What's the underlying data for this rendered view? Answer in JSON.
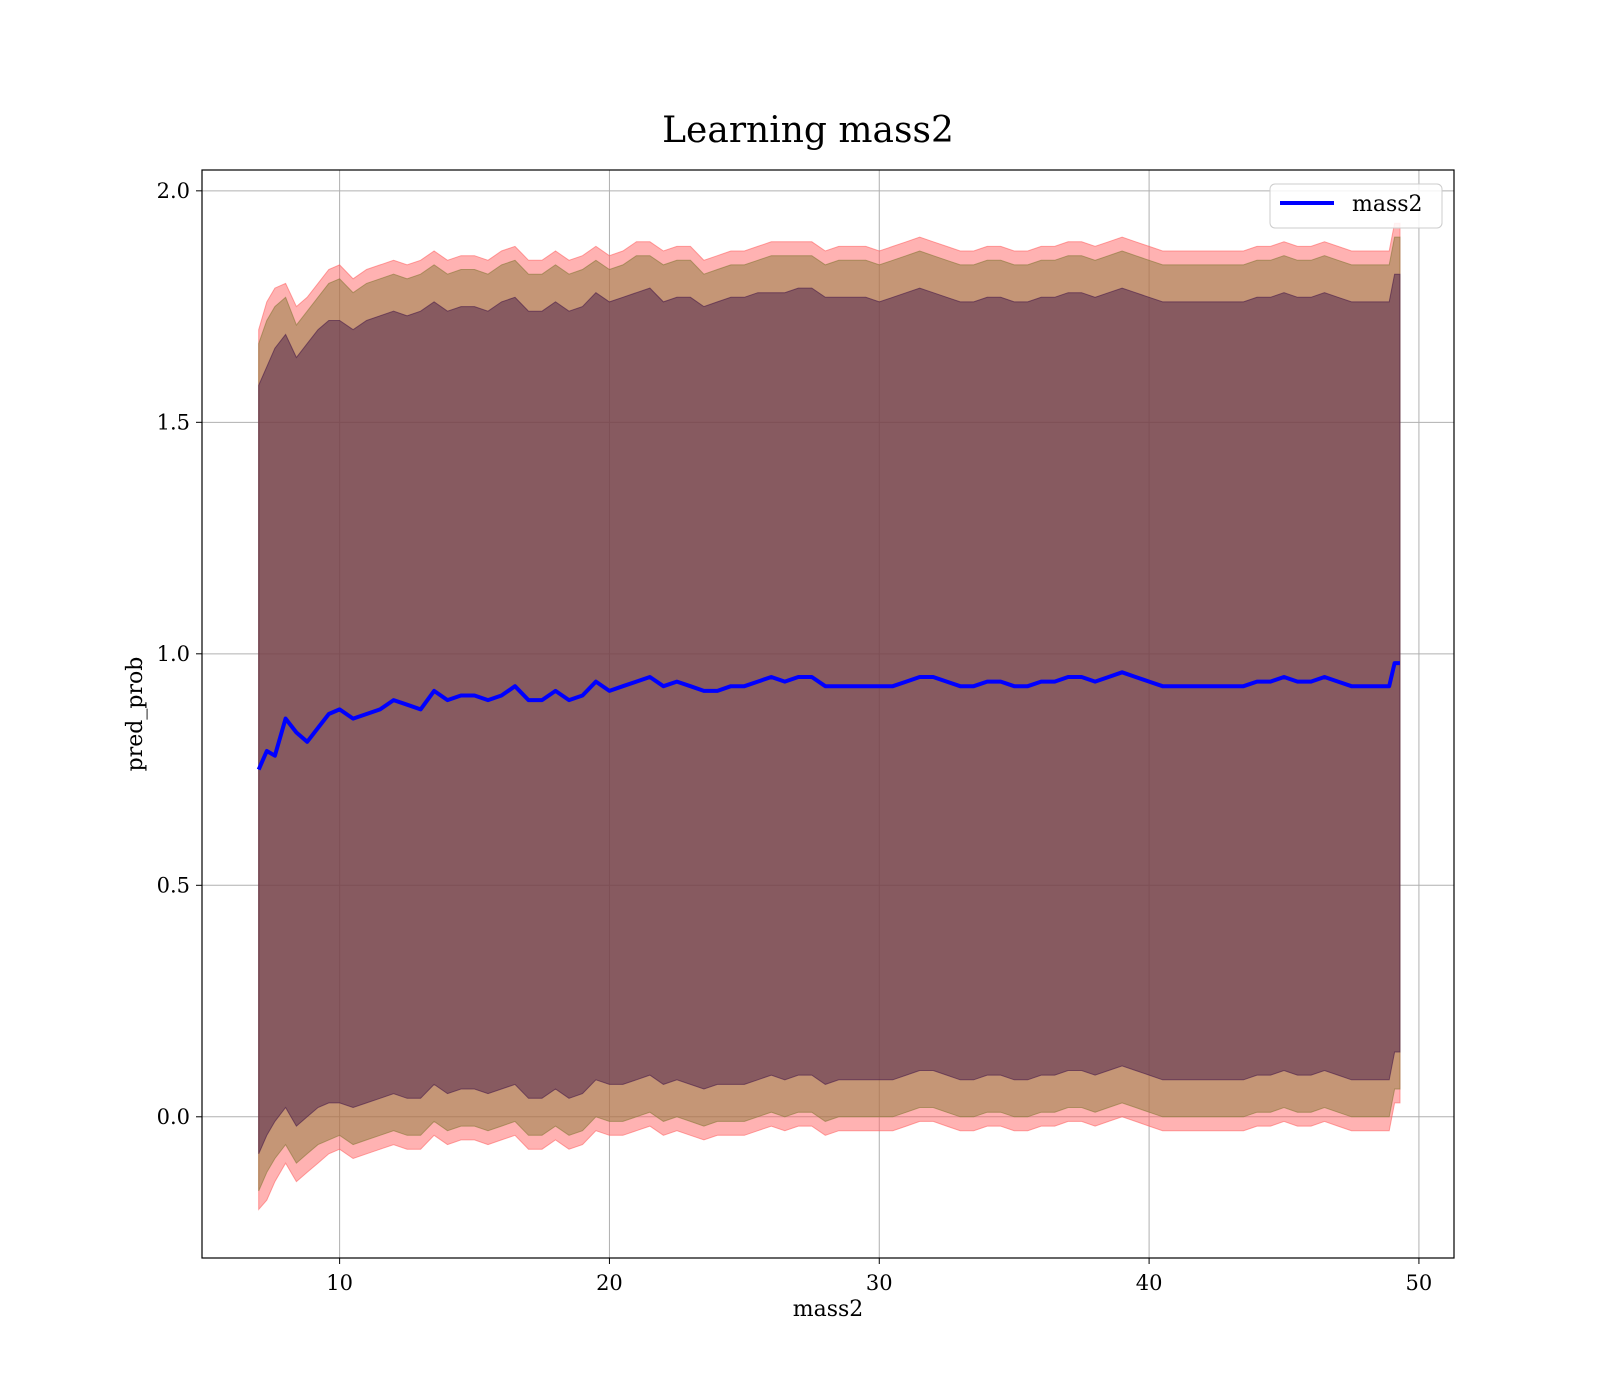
{
  "chart_data": {
    "type": "line",
    "title": "Learning mass2",
    "xlabel": "mass2",
    "ylabel": "pred_prob",
    "xlim": [
      4.9,
      51.3
    ],
    "ylim": [
      -0.305,
      2.045
    ],
    "xticks": [
      10,
      20,
      30,
      40,
      50
    ],
    "xtick_labels": [
      "10",
      "20",
      "30",
      "40",
      "50"
    ],
    "yticks": [
      0.0,
      0.5,
      1.0,
      1.5,
      2.0
    ],
    "ytick_labels": [
      "0.0",
      "0.5",
      "1.0",
      "1.5",
      "2.0"
    ],
    "grid": true,
    "legend": {
      "placement": "top-right",
      "entries": [
        "mass2"
      ]
    },
    "colors": {
      "line": "#0000ff",
      "band_outer": "#ff6666",
      "band_middle": "#8b7a3a",
      "band_inner": "#4a1d4a",
      "grid": "#b0b0b0"
    },
    "series": [
      {
        "name": "mass2",
        "x": [
          7.0,
          7.3,
          7.6,
          8.0,
          8.4,
          8.8,
          9.2,
          9.6,
          10.0,
          10.5,
          11.0,
          11.5,
          12.0,
          12.5,
          13.0,
          13.5,
          14.0,
          14.5,
          15.0,
          15.5,
          16.0,
          16.5,
          17.0,
          17.5,
          18.0,
          18.5,
          19.0,
          19.5,
          20.0,
          20.5,
          21.0,
          21.5,
          22.0,
          22.5,
          23.0,
          23.5,
          24.0,
          24.5,
          25.0,
          25.5,
          26.0,
          26.5,
          27.0,
          27.5,
          28.0,
          28.5,
          29.0,
          29.5,
          30.0,
          30.5,
          31.0,
          31.5,
          32.0,
          32.5,
          33.0,
          33.5,
          34.0,
          34.5,
          35.0,
          35.5,
          36.0,
          36.5,
          37.0,
          37.5,
          38.0,
          38.5,
          39.0,
          39.5,
          40.0,
          40.5,
          41.0,
          41.5,
          42.0,
          42.5,
          43.0,
          43.5,
          44.0,
          44.5,
          45.0,
          45.5,
          46.0,
          46.5,
          47.0,
          47.5,
          48.0,
          48.5,
          48.9,
          49.1,
          49.3
        ],
        "y": [
          0.75,
          0.79,
          0.78,
          0.86,
          0.83,
          0.81,
          0.84,
          0.87,
          0.88,
          0.86,
          0.87,
          0.88,
          0.9,
          0.89,
          0.88,
          0.92,
          0.9,
          0.91,
          0.91,
          0.9,
          0.91,
          0.93,
          0.9,
          0.9,
          0.92,
          0.9,
          0.91,
          0.94,
          0.92,
          0.93,
          0.94,
          0.95,
          0.93,
          0.94,
          0.93,
          0.92,
          0.92,
          0.93,
          0.93,
          0.94,
          0.95,
          0.94,
          0.95,
          0.95,
          0.93,
          0.93,
          0.93,
          0.93,
          0.93,
          0.93,
          0.94,
          0.95,
          0.95,
          0.94,
          0.93,
          0.93,
          0.94,
          0.94,
          0.93,
          0.93,
          0.94,
          0.94,
          0.95,
          0.95,
          0.94,
          0.95,
          0.96,
          0.95,
          0.94,
          0.93,
          0.93,
          0.93,
          0.93,
          0.93,
          0.93,
          0.93,
          0.94,
          0.94,
          0.95,
          0.94,
          0.94,
          0.95,
          0.94,
          0.93,
          0.93,
          0.93,
          0.93,
          0.98,
          0.98
        ]
      }
    ],
    "bands": [
      {
        "role": "outer",
        "x": [
          7.0,
          7.3,
          7.6,
          8.0,
          8.4,
          8.8,
          9.2,
          9.6,
          10.0,
          10.5,
          11.0,
          11.5,
          12.0,
          12.5,
          13.0,
          13.5,
          14.0,
          14.5,
          15.0,
          15.5,
          16.0,
          16.5,
          17.0,
          17.5,
          18.0,
          18.5,
          19.0,
          19.5,
          20.0,
          20.5,
          21.0,
          21.5,
          22.0,
          22.5,
          23.0,
          23.5,
          24.0,
          24.5,
          25.0,
          25.5,
          26.0,
          26.5,
          27.0,
          27.5,
          28.0,
          28.5,
          29.0,
          29.5,
          30.0,
          30.5,
          31.0,
          31.5,
          32.0,
          32.5,
          33.0,
          33.5,
          34.0,
          34.5,
          35.0,
          35.5,
          36.0,
          36.5,
          37.0,
          37.5,
          38.0,
          38.5,
          39.0,
          39.5,
          40.0,
          40.5,
          41.0,
          41.5,
          42.0,
          42.5,
          43.0,
          43.5,
          44.0,
          44.5,
          45.0,
          45.5,
          46.0,
          46.5,
          47.0,
          47.5,
          48.0,
          48.5,
          48.9,
          49.1,
          49.3
        ],
        "upper": [
          1.7,
          1.76,
          1.79,
          1.8,
          1.75,
          1.77,
          1.8,
          1.83,
          1.84,
          1.81,
          1.83,
          1.84,
          1.85,
          1.84,
          1.85,
          1.87,
          1.85,
          1.86,
          1.86,
          1.85,
          1.87,
          1.88,
          1.85,
          1.85,
          1.87,
          1.85,
          1.86,
          1.88,
          1.86,
          1.87,
          1.89,
          1.89,
          1.87,
          1.88,
          1.88,
          1.85,
          1.86,
          1.87,
          1.87,
          1.88,
          1.89,
          1.89,
          1.89,
          1.89,
          1.87,
          1.88,
          1.88,
          1.88,
          1.87,
          1.88,
          1.89,
          1.9,
          1.89,
          1.88,
          1.87,
          1.87,
          1.88,
          1.88,
          1.87,
          1.87,
          1.88,
          1.88,
          1.89,
          1.89,
          1.88,
          1.89,
          1.9,
          1.89,
          1.88,
          1.87,
          1.87,
          1.87,
          1.87,
          1.87,
          1.87,
          1.87,
          1.88,
          1.88,
          1.89,
          1.88,
          1.88,
          1.89,
          1.88,
          1.87,
          1.87,
          1.87,
          1.87,
          1.93,
          1.93
        ],
        "lower": [
          -0.2,
          -0.18,
          -0.14,
          -0.1,
          -0.14,
          -0.12,
          -0.1,
          -0.08,
          -0.07,
          -0.09,
          -0.08,
          -0.07,
          -0.06,
          -0.07,
          -0.07,
          -0.04,
          -0.06,
          -0.05,
          -0.05,
          -0.06,
          -0.05,
          -0.04,
          -0.07,
          -0.07,
          -0.05,
          -0.07,
          -0.06,
          -0.03,
          -0.04,
          -0.04,
          -0.03,
          -0.02,
          -0.04,
          -0.03,
          -0.04,
          -0.05,
          -0.04,
          -0.04,
          -0.04,
          -0.03,
          -0.02,
          -0.03,
          -0.02,
          -0.02,
          -0.04,
          -0.03,
          -0.03,
          -0.03,
          -0.03,
          -0.03,
          -0.02,
          -0.01,
          -0.01,
          -0.02,
          -0.03,
          -0.03,
          -0.02,
          -0.02,
          -0.03,
          -0.03,
          -0.02,
          -0.02,
          -0.01,
          -0.01,
          -0.02,
          -0.01,
          0.0,
          -0.01,
          -0.02,
          -0.03,
          -0.03,
          -0.03,
          -0.03,
          -0.03,
          -0.03,
          -0.03,
          -0.02,
          -0.02,
          -0.01,
          -0.02,
          -0.02,
          -0.01,
          -0.02,
          -0.03,
          -0.03,
          -0.03,
          -0.03,
          0.03,
          0.03
        ]
      },
      {
        "role": "middle",
        "x": [
          7.0,
          7.3,
          7.6,
          8.0,
          8.4,
          8.8,
          9.2,
          9.6,
          10.0,
          10.5,
          11.0,
          11.5,
          12.0,
          12.5,
          13.0,
          13.5,
          14.0,
          14.5,
          15.0,
          15.5,
          16.0,
          16.5,
          17.0,
          17.5,
          18.0,
          18.5,
          19.0,
          19.5,
          20.0,
          20.5,
          21.0,
          21.5,
          22.0,
          22.5,
          23.0,
          23.5,
          24.0,
          24.5,
          25.0,
          25.5,
          26.0,
          26.5,
          27.0,
          27.5,
          28.0,
          28.5,
          29.0,
          29.5,
          30.0,
          30.5,
          31.0,
          31.5,
          32.0,
          32.5,
          33.0,
          33.5,
          34.0,
          34.5,
          35.0,
          35.5,
          36.0,
          36.5,
          37.0,
          37.5,
          38.0,
          38.5,
          39.0,
          39.5,
          40.0,
          40.5,
          41.0,
          41.5,
          42.0,
          42.5,
          43.0,
          43.5,
          44.0,
          44.5,
          45.0,
          45.5,
          46.0,
          46.5,
          47.0,
          47.5,
          48.0,
          48.5,
          48.9,
          49.1,
          49.3
        ],
        "upper": [
          1.67,
          1.72,
          1.75,
          1.77,
          1.71,
          1.74,
          1.77,
          1.8,
          1.81,
          1.78,
          1.8,
          1.81,
          1.82,
          1.81,
          1.82,
          1.84,
          1.82,
          1.83,
          1.83,
          1.82,
          1.84,
          1.85,
          1.82,
          1.82,
          1.84,
          1.82,
          1.83,
          1.85,
          1.83,
          1.84,
          1.86,
          1.86,
          1.84,
          1.85,
          1.85,
          1.82,
          1.83,
          1.84,
          1.84,
          1.85,
          1.86,
          1.86,
          1.86,
          1.86,
          1.84,
          1.85,
          1.85,
          1.85,
          1.84,
          1.85,
          1.86,
          1.87,
          1.86,
          1.85,
          1.84,
          1.84,
          1.85,
          1.85,
          1.84,
          1.84,
          1.85,
          1.85,
          1.86,
          1.86,
          1.85,
          1.86,
          1.87,
          1.86,
          1.85,
          1.84,
          1.84,
          1.84,
          1.84,
          1.84,
          1.84,
          1.84,
          1.85,
          1.85,
          1.86,
          1.85,
          1.85,
          1.86,
          1.85,
          1.84,
          1.84,
          1.84,
          1.84,
          1.9,
          1.9
        ],
        "lower": [
          -0.16,
          -0.12,
          -0.09,
          -0.06,
          -0.1,
          -0.08,
          -0.06,
          -0.05,
          -0.04,
          -0.06,
          -0.05,
          -0.04,
          -0.03,
          -0.04,
          -0.04,
          -0.01,
          -0.03,
          -0.02,
          -0.02,
          -0.03,
          -0.02,
          -0.01,
          -0.04,
          -0.04,
          -0.02,
          -0.04,
          -0.03,
          0.0,
          -0.01,
          -0.01,
          0.0,
          0.01,
          -0.01,
          0.0,
          -0.01,
          -0.02,
          -0.01,
          -0.01,
          -0.01,
          0.0,
          0.01,
          0.0,
          0.01,
          0.01,
          -0.01,
          0.0,
          0.0,
          0.0,
          0.0,
          0.0,
          0.01,
          0.02,
          0.02,
          0.01,
          0.0,
          0.0,
          0.01,
          0.01,
          0.0,
          0.0,
          0.01,
          0.01,
          0.02,
          0.02,
          0.01,
          0.02,
          0.03,
          0.02,
          0.01,
          0.0,
          0.0,
          0.0,
          0.0,
          0.0,
          0.0,
          0.0,
          0.01,
          0.01,
          0.02,
          0.01,
          0.01,
          0.02,
          0.01,
          0.0,
          0.0,
          0.0,
          0.0,
          0.06,
          0.06
        ]
      },
      {
        "role": "inner",
        "x": [
          7.0,
          7.3,
          7.6,
          8.0,
          8.4,
          8.8,
          9.2,
          9.6,
          10.0,
          10.5,
          11.0,
          11.5,
          12.0,
          12.5,
          13.0,
          13.5,
          14.0,
          14.5,
          15.0,
          15.5,
          16.0,
          16.5,
          17.0,
          17.5,
          18.0,
          18.5,
          19.0,
          19.5,
          20.0,
          20.5,
          21.0,
          21.5,
          22.0,
          22.5,
          23.0,
          23.5,
          24.0,
          24.5,
          25.0,
          25.5,
          26.0,
          26.5,
          27.0,
          27.5,
          28.0,
          28.5,
          29.0,
          29.5,
          30.0,
          30.5,
          31.0,
          31.5,
          32.0,
          32.5,
          33.0,
          33.5,
          34.0,
          34.5,
          35.0,
          35.5,
          36.0,
          36.5,
          37.0,
          37.5,
          38.0,
          38.5,
          39.0,
          39.5,
          40.0,
          40.5,
          41.0,
          41.5,
          42.0,
          42.5,
          43.0,
          43.5,
          44.0,
          44.5,
          45.0,
          45.5,
          46.0,
          46.5,
          47.0,
          47.5,
          48.0,
          48.5,
          48.9,
          49.1,
          49.3
        ],
        "upper": [
          1.58,
          1.62,
          1.66,
          1.69,
          1.64,
          1.67,
          1.7,
          1.72,
          1.72,
          1.7,
          1.72,
          1.73,
          1.74,
          1.73,
          1.74,
          1.76,
          1.74,
          1.75,
          1.75,
          1.74,
          1.76,
          1.77,
          1.74,
          1.74,
          1.76,
          1.74,
          1.75,
          1.78,
          1.76,
          1.77,
          1.78,
          1.79,
          1.76,
          1.77,
          1.77,
          1.75,
          1.76,
          1.77,
          1.77,
          1.78,
          1.78,
          1.78,
          1.79,
          1.79,
          1.77,
          1.77,
          1.77,
          1.77,
          1.76,
          1.77,
          1.78,
          1.79,
          1.78,
          1.77,
          1.76,
          1.76,
          1.77,
          1.77,
          1.76,
          1.76,
          1.77,
          1.77,
          1.78,
          1.78,
          1.77,
          1.78,
          1.79,
          1.78,
          1.77,
          1.76,
          1.76,
          1.76,
          1.76,
          1.76,
          1.76,
          1.76,
          1.77,
          1.77,
          1.78,
          1.77,
          1.77,
          1.78,
          1.77,
          1.76,
          1.76,
          1.76,
          1.76,
          1.82,
          1.82
        ],
        "lower": [
          -0.08,
          -0.04,
          -0.01,
          0.02,
          -0.02,
          0.0,
          0.02,
          0.03,
          0.03,
          0.02,
          0.03,
          0.04,
          0.05,
          0.04,
          0.04,
          0.07,
          0.05,
          0.06,
          0.06,
          0.05,
          0.06,
          0.07,
          0.04,
          0.04,
          0.06,
          0.04,
          0.05,
          0.08,
          0.07,
          0.07,
          0.08,
          0.09,
          0.07,
          0.08,
          0.07,
          0.06,
          0.07,
          0.07,
          0.07,
          0.08,
          0.09,
          0.08,
          0.09,
          0.09,
          0.07,
          0.08,
          0.08,
          0.08,
          0.08,
          0.08,
          0.09,
          0.1,
          0.1,
          0.09,
          0.08,
          0.08,
          0.09,
          0.09,
          0.08,
          0.08,
          0.09,
          0.09,
          0.1,
          0.1,
          0.09,
          0.1,
          0.11,
          0.1,
          0.09,
          0.08,
          0.08,
          0.08,
          0.08,
          0.08,
          0.08,
          0.08,
          0.09,
          0.09,
          0.1,
          0.09,
          0.09,
          0.1,
          0.09,
          0.08,
          0.08,
          0.08,
          0.08,
          0.14,
          0.14
        ]
      }
    ]
  }
}
